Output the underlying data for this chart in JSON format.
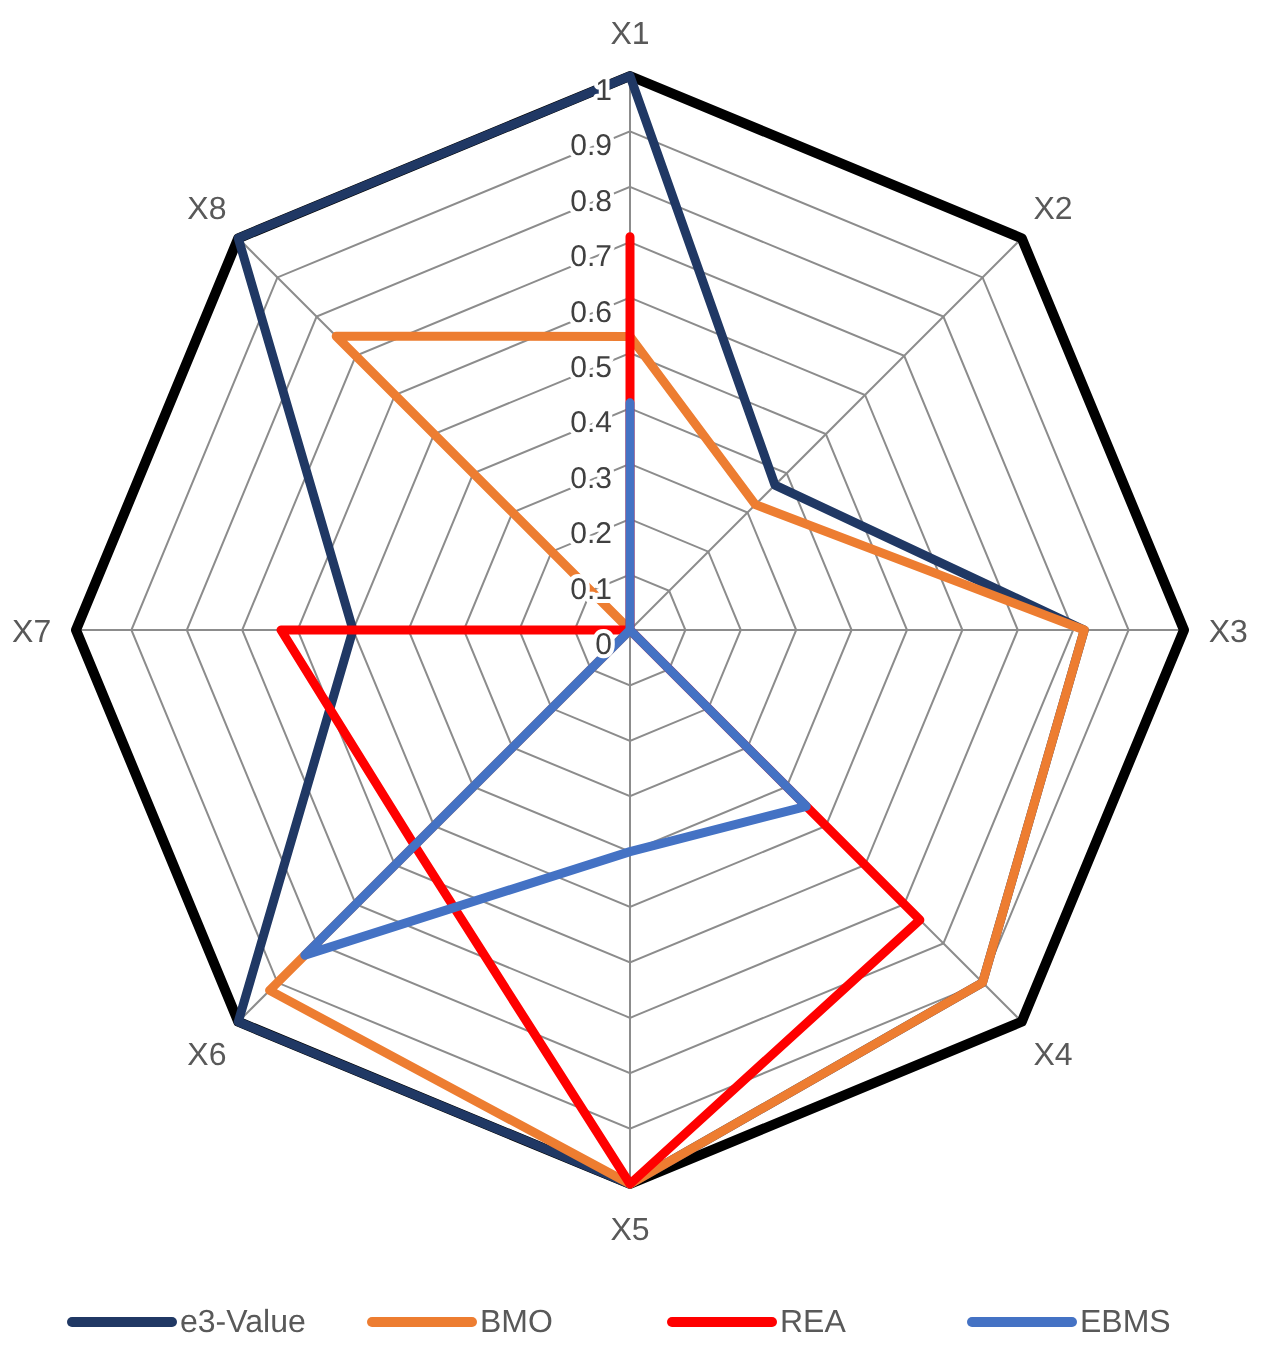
{
  "chart_data": {
    "type": "radar",
    "categories": [
      "X1",
      "X2",
      "X3",
      "X4",
      "X5",
      "X6",
      "X7",
      "X8"
    ],
    "series": [
      {
        "name": "e3-Value",
        "color": "#203864",
        "values": [
          1,
          0.37,
          0.82,
          0.9,
          1,
          1,
          0.5,
          1
        ]
      },
      {
        "name": "BMO",
        "color": "#ed7d31",
        "values": [
          0.53,
          0.32,
          0.82,
          0.9,
          1,
          0.92,
          0,
          0.75
        ]
      },
      {
        "name": "REA",
        "color": "#ff0000",
        "values": [
          0.71,
          0,
          0,
          0.74,
          1,
          0.55,
          0.63,
          0
        ]
      },
      {
        "name": "EBMS",
        "color": "#4472c4",
        "values": [
          0.41,
          0,
          0,
          0.45,
          0.4,
          0.83,
          0,
          0
        ]
      }
    ],
    "ylim": [
      0,
      1
    ],
    "yticks": [
      0,
      0.1,
      0.2,
      0.3,
      0.4,
      0.5,
      0.6,
      0.7,
      0.8,
      0.9,
      1
    ],
    "grid": true,
    "legend": "bottom"
  }
}
